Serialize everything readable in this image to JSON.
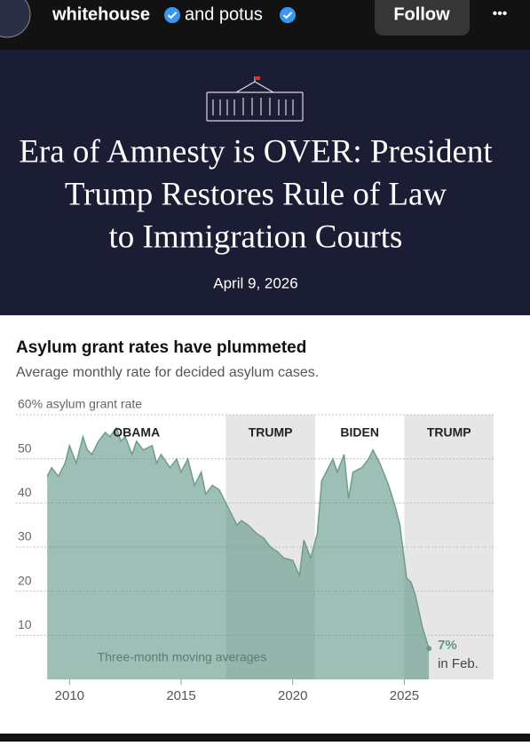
{
  "header": {
    "account": "whitehouse",
    "joiner": "and potus",
    "follow": "Follow",
    "more": "•••"
  },
  "banner": {
    "title_lines": [
      "Era of Amnesty is OVER: President",
      "Trump Restores Rule of Law",
      "to Immigration Courts"
    ],
    "date": "April 9, 2026"
  },
  "chart_data": {
    "type": "area",
    "title": "Asylum grant rates have plummeted",
    "subtitle": "Average monthly rate for decided asylum cases.",
    "x": [
      2009.0,
      2009.2,
      2009.5,
      2009.8,
      2010.0,
      2010.3,
      2010.6,
      2010.8,
      2011.0,
      2011.3,
      2011.6,
      2011.8,
      2012.1,
      2012.3,
      2012.5,
      2012.8,
      2013.0,
      2013.3,
      2013.7,
      2013.9,
      2014.1,
      2014.5,
      2014.8,
      2015.0,
      2015.3,
      2015.6,
      2015.9,
      2016.1,
      2016.4,
      2016.7,
      2017.0,
      2017.3,
      2017.5,
      2017.7,
      2018.0,
      2018.4,
      2018.7,
      2019.0,
      2019.3,
      2019.6,
      2020.0,
      2020.3,
      2020.5,
      2020.8,
      2021.1,
      2021.3,
      2021.6,
      2021.8,
      2022.0,
      2022.3,
      2022.5,
      2022.7,
      2023.1,
      2023.4,
      2023.6,
      2023.9,
      2024.3,
      2024.6,
      2024.8,
      2025.1,
      2025.3,
      2025.5,
      2025.8,
      2026.1
    ],
    "series": [
      {
        "name": "Asylum grant rate",
        "color": "#5e9585",
        "line_color": "#6f9c8f",
        "values": [
          46,
          48,
          46,
          49,
          53,
          49,
          55,
          52,
          51,
          54,
          56,
          55,
          57,
          54,
          55,
          51,
          54,
          52,
          53,
          49,
          51,
          48,
          50,
          47,
          50,
          44,
          47,
          42,
          44,
          43,
          40,
          37,
          35,
          36,
          35,
          33,
          32,
          30,
          29,
          27.5,
          27,
          23.5,
          31.6,
          27.5,
          33,
          45,
          48,
          50,
          47,
          51,
          41,
          47,
          48,
          50,
          52,
          49,
          44,
          39,
          35,
          23,
          22,
          19,
          12,
          7
        ]
      }
    ],
    "end_label": "7%",
    "end_note": "in Feb.",
    "annotation": "Three-month moving averages",
    "periods": [
      {
        "label": "OBAMA",
        "start": 2009,
        "end": 2017,
        "shaded": false
      },
      {
        "label": "TRUMP",
        "start": 2017,
        "end": 2021,
        "shaded": true
      },
      {
        "label": "BIDEN",
        "start": 2021,
        "end": 2025,
        "shaded": false
      },
      {
        "label": "TRUMP",
        "start": 2025,
        "shaded": true
      }
    ],
    "xlim": [
      2007.6,
      2029.0
    ],
    "xticks": [
      2010,
      2015,
      2020,
      2025
    ],
    "ylim": [
      0,
      60
    ],
    "yticks": [
      10,
      20,
      30,
      40,
      50,
      {
        "value": 60,
        "label": "60% asylum grant rate"
      }
    ],
    "grid": true,
    "shade_color": "#e6e6e6"
  }
}
